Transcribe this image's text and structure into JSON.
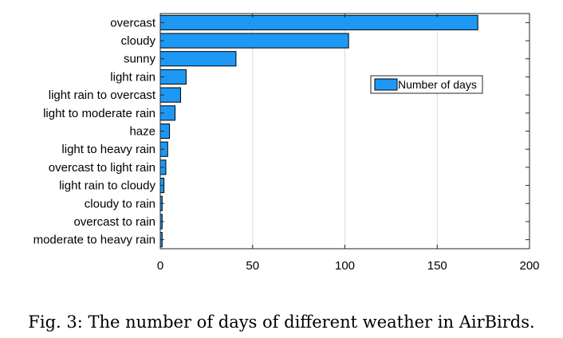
{
  "caption": "Fig. 3: The number of days of different weather in AirBirds.",
  "colors": {
    "bar_fill": "#1e98f5",
    "bar_edge": "#000000",
    "grid": "#dcdcdc",
    "axis": "#262626"
  },
  "chart_data": {
    "type": "bar",
    "orientation": "horizontal",
    "categories": [
      "overcast",
      "cloudy",
      "sunny",
      "light rain",
      "light rain to overcast",
      "light to moderate rain",
      "haze",
      "light to heavy rain",
      "overcast to light rain",
      "light rain to cloudy",
      "cloudy to rain",
      "overcast to rain",
      "moderate to heavy rain"
    ],
    "series": [
      {
        "name": "Number of days",
        "values": [
          172,
          102,
          41,
          14,
          11,
          8,
          5,
          4,
          3,
          2,
          1,
          1,
          1
        ]
      }
    ],
    "xlim": [
      0,
      200
    ],
    "xticks": [
      0,
      50,
      100,
      150,
      200
    ],
    "grid": "vertical",
    "legend": "upper-right"
  }
}
